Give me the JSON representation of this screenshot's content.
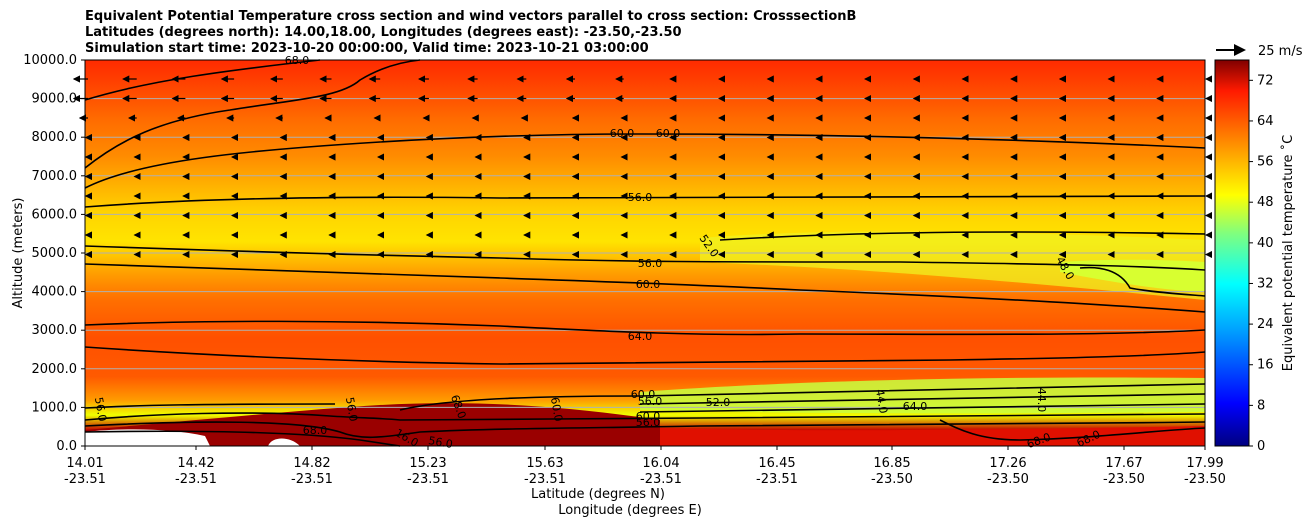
{
  "chart_data": {
    "type": "heatmap",
    "title_lines": [
      "Equivalent Potential Temperature cross section and wind vectors parallel to cross section: CrosssectionB",
      "Latitudes (degrees north): 14.00,18.00, Longitudes (degrees east): -23.50,-23.50",
      "Simulation start time: 2023-10-20 00:00:00, Valid time: 2023-10-21 03:00:00"
    ],
    "ylabel": "Altitude (meters)",
    "xlabel": "Latitude (degrees N)",
    "xlabel2": "Longitude (degrees E)",
    "ylim": [
      0,
      10000
    ],
    "xlim": [
      14.01,
      17.99
    ],
    "y_ticks": [
      "0.0",
      "1000.0",
      "2000.0",
      "3000.0",
      "4000.0",
      "5000.0",
      "6000.0",
      "7000.0",
      "8000.0",
      "9000.0",
      "10000.0"
    ],
    "x_ticks": [
      {
        "lat": "14.01",
        "lon": "-23.51"
      },
      {
        "lat": "14.42",
        "lon": "-23.51"
      },
      {
        "lat": "14.82",
        "lon": "-23.51"
      },
      {
        "lat": "15.23",
        "lon": "-23.51"
      },
      {
        "lat": "15.63",
        "lon": "-23.51"
      },
      {
        "lat": "16.04",
        "lon": "-23.51"
      },
      {
        "lat": "16.45",
        "lon": "-23.51"
      },
      {
        "lat": "16.85",
        "lon": "-23.50"
      },
      {
        "lat": "17.26",
        "lon": "-23.50"
      },
      {
        "lat": "17.67",
        "lon": "-23.50"
      },
      {
        "lat": "17.99",
        "lon": "-23.50"
      }
    ],
    "colorbar": {
      "label": "Equivalent potential temperature ˚C",
      "range": [
        0,
        76
      ],
      "ticks": [
        "0",
        "8",
        "16",
        "24",
        "32",
        "40",
        "48",
        "56",
        "64",
        "72"
      ]
    },
    "wind_key": "25 m/s",
    "grid": "horizontal",
    "contour_labels": [
      "68.0",
      "60.0",
      "60.0",
      "56.0",
      "52.0",
      "56.0",
      "60.0",
      "48.0",
      "64.0",
      "60.0",
      "56.0",
      "52.0",
      "44.0",
      "68.0",
      "68.0",
      "56.0",
      "56.0",
      "60.0",
      "56.0",
      "44.0",
      "64.0",
      "60.0",
      "56.0",
      "16.0",
      "68.0",
      "68.0"
    ],
    "profile": [
      {
        "alt": 10000,
        "theta_e": 68
      },
      {
        "alt": 9000,
        "theta_e": 66
      },
      {
        "alt": 8000,
        "theta_e": 61
      },
      {
        "alt": 7000,
        "theta_e": 57
      },
      {
        "alt": 6000,
        "theta_e": 55
      },
      {
        "alt": 5000,
        "theta_e": 52
      },
      {
        "alt": 4000,
        "theta_e": 58
      },
      {
        "alt": 3000,
        "theta_e": 63
      },
      {
        "alt": 2000,
        "theta_e": 65
      },
      {
        "alt": 1000,
        "theta_e": 58
      },
      {
        "alt": 0,
        "theta_e": 70
      }
    ]
  }
}
